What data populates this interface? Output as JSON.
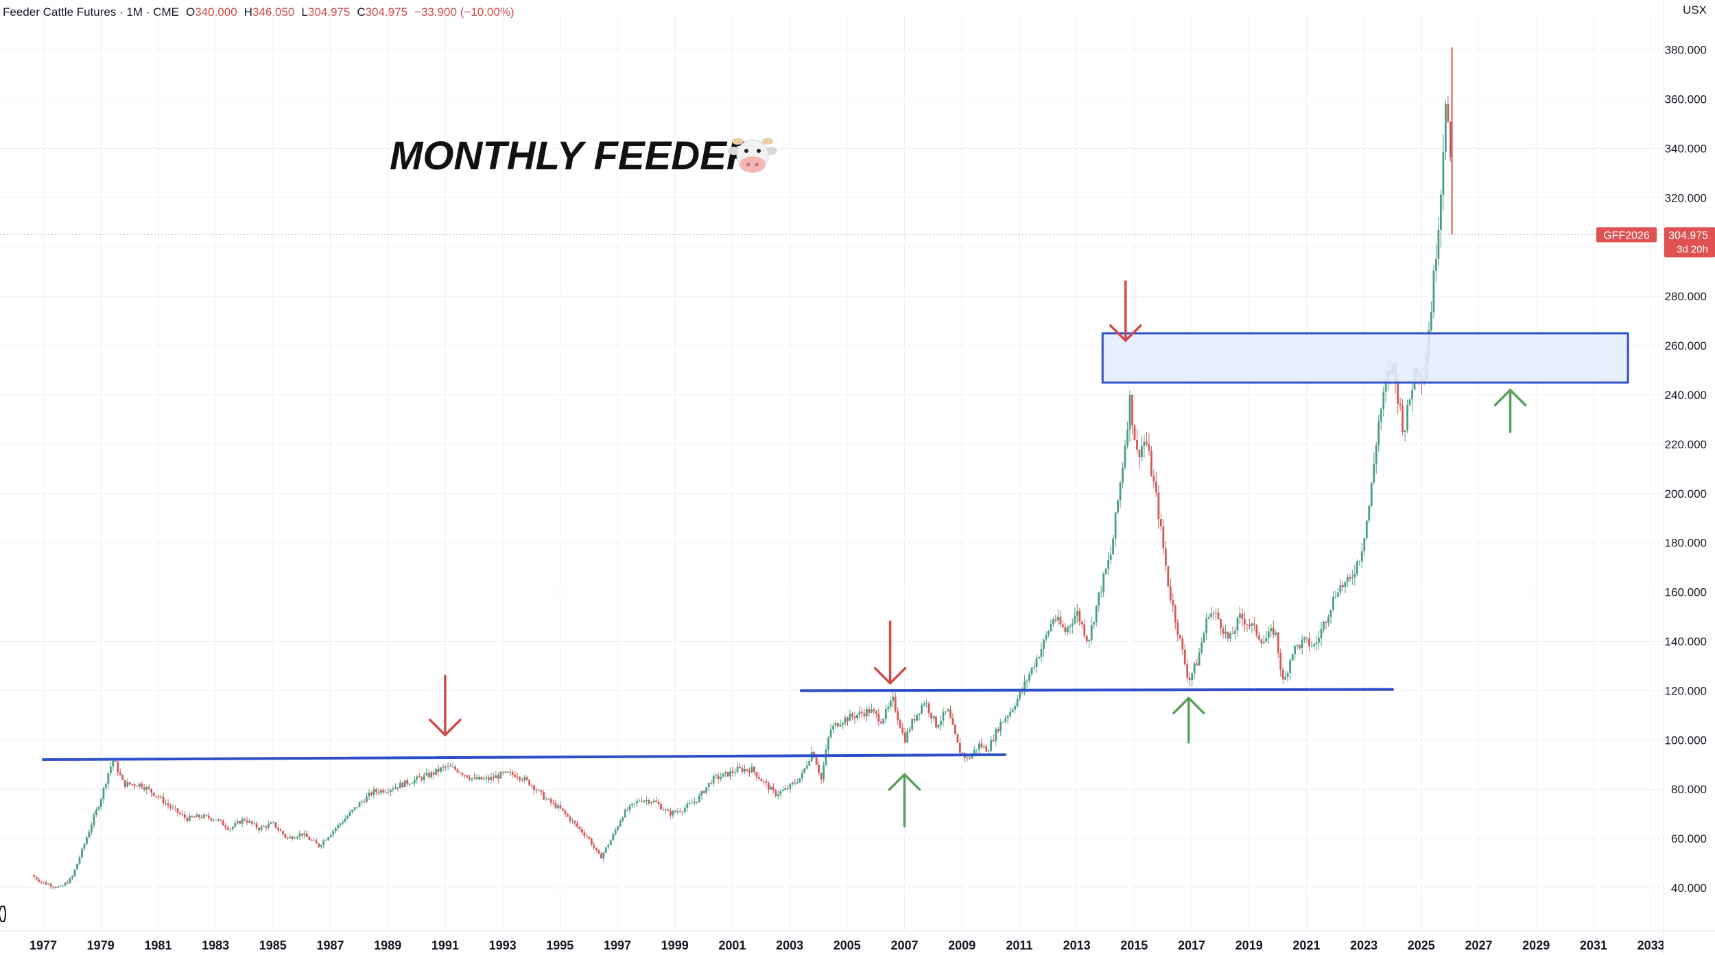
{
  "header": {
    "symbol": "Feeder Cattle Futures · 1M · CME",
    "o_label": "O",
    "o_value": "340.000",
    "h_label": "H",
    "h_value": "346.050",
    "l_label": "L",
    "l_value": "304.975",
    "c_label": "C",
    "c_value": "304.975",
    "change": "−33.900 (−10.00%)",
    "currency": "USX"
  },
  "annotation": {
    "text": "MONTHLY FEEDER",
    "emoji": "🐮"
  },
  "price_badge": {
    "ticker": "GFF2026",
    "price": "304.975",
    "countdown": "3d 20h",
    "value": 304.975
  },
  "colors": {
    "up": "#4a9e83",
    "down": "#d05a5a",
    "level_line": "#2f4fc9",
    "zone_fill": "#e3ecfb",
    "zone_border": "#2f4fc9",
    "arrow_red": "#d04a4a",
    "arrow_green": "#5a9e5a",
    "badge": "#e05252",
    "grid": "#eef0f3"
  },
  "chart_data": {
    "type": "candlestick",
    "interval": "monthly",
    "xlim": [
      1976.5,
      2033
    ],
    "ylim": [
      30,
      386
    ],
    "grid": true,
    "y_ticks": [
      "40.000",
      "60.000",
      "80.000",
      "100.000",
      "120.000",
      "140.000",
      "160.000",
      "180.000",
      "200.000",
      "220.000",
      "240.000",
      "260.000",
      "280.000",
      "300.000",
      "320.000",
      "340.000",
      "360.000",
      "380.000"
    ],
    "x_ticks": [
      "1977",
      "1979",
      "1981",
      "1983",
      "1985",
      "1987",
      "1989",
      "1991",
      "1993",
      "1995",
      "1997",
      "1999",
      "2001",
      "2003",
      "2005",
      "2007",
      "2009",
      "2011",
      "2013",
      "2015",
      "2017",
      "2019",
      "2021",
      "2023",
      "2025",
      "2027",
      "2029",
      "2031",
      "2033"
    ],
    "price_path": [
      [
        1976.6,
        45
      ],
      [
        1977.0,
        42
      ],
      [
        1977.6,
        40
      ],
      [
        1978.0,
        44
      ],
      [
        1978.5,
        60
      ],
      [
        1979.0,
        76
      ],
      [
        1979.3,
        88
      ],
      [
        1979.45,
        92
      ],
      [
        1979.8,
        82
      ],
      [
        1980.4,
        82
      ],
      [
        1981.0,
        77
      ],
      [
        1981.5,
        72
      ],
      [
        1982.0,
        68
      ],
      [
        1982.5,
        69
      ],
      [
        1983.0,
        68
      ],
      [
        1983.5,
        64
      ],
      [
        1984.0,
        68
      ],
      [
        1984.5,
        64
      ],
      [
        1985.0,
        66
      ],
      [
        1985.5,
        60
      ],
      [
        1986.0,
        62
      ],
      [
        1986.6,
        57
      ],
      [
        1987.0,
        62
      ],
      [
        1987.5,
        68
      ],
      [
        1988.0,
        74
      ],
      [
        1988.5,
        79
      ],
      [
        1989.0,
        80
      ],
      [
        1989.5,
        82
      ],
      [
        1990.0,
        84
      ],
      [
        1990.5,
        86
      ],
      [
        1991.0,
        89
      ],
      [
        1991.4,
        88
      ],
      [
        1992.0,
        84
      ],
      [
        1992.5,
        84
      ],
      [
        1993.0,
        86
      ],
      [
        1993.5,
        86
      ],
      [
        1994.0,
        82
      ],
      [
        1994.5,
        76
      ],
      [
        1995.0,
        72
      ],
      [
        1995.5,
        66
      ],
      [
        1996.0,
        60
      ],
      [
        1996.4,
        52
      ],
      [
        1996.8,
        60
      ],
      [
        1997.2,
        70
      ],
      [
        1997.8,
        76
      ],
      [
        1998.3,
        75
      ],
      [
        1998.8,
        70
      ],
      [
        1999.3,
        72
      ],
      [
        1999.8,
        76
      ],
      [
        2000.3,
        84
      ],
      [
        2000.8,
        86
      ],
      [
        2001.2,
        88
      ],
      [
        2001.7,
        88
      ],
      [
        2002.0,
        84
      ],
      [
        2002.5,
        78
      ],
      [
        2002.9,
        80
      ],
      [
        2003.4,
        85
      ],
      [
        2003.8,
        96
      ],
      [
        2004.1,
        84
      ],
      [
        2004.4,
        104
      ],
      [
        2004.8,
        108
      ],
      [
        2005.3,
        110
      ],
      [
        2005.8,
        112
      ],
      [
        2006.2,
        108
      ],
      [
        2006.6,
        116
      ],
      [
        2007.0,
        100
      ],
      [
        2007.3,
        108
      ],
      [
        2007.7,
        116
      ],
      [
        2008.1,
        106
      ],
      [
        2008.5,
        112
      ],
      [
        2008.9,
        96
      ],
      [
        2009.2,
        92
      ],
      [
        2009.6,
        98
      ],
      [
        2009.9,
        96
      ],
      [
        2010.3,
        106
      ],
      [
        2010.7,
        112
      ],
      [
        2011.0,
        118
      ],
      [
        2011.4,
        128
      ],
      [
        2011.8,
        138
      ],
      [
        2012.2,
        150
      ],
      [
        2012.6,
        144
      ],
      [
        2013.0,
        152
      ],
      [
        2013.4,
        140
      ],
      [
        2013.8,
        160
      ],
      [
        2014.2,
        176
      ],
      [
        2014.6,
        212
      ],
      [
        2014.85,
        238
      ],
      [
        2015.1,
        216
      ],
      [
        2015.4,
        222
      ],
      [
        2015.8,
        196
      ],
      [
        2016.2,
        162
      ],
      [
        2016.6,
        140
      ],
      [
        2016.9,
        124
      ],
      [
        2017.2,
        132
      ],
      [
        2017.6,
        152
      ],
      [
        2017.9,
        150
      ],
      [
        2018.3,
        140
      ],
      [
        2018.7,
        150
      ],
      [
        2019.1,
        146
      ],
      [
        2019.5,
        140
      ],
      [
        2019.9,
        145
      ],
      [
        2020.2,
        122
      ],
      [
        2020.5,
        136
      ],
      [
        2020.9,
        140
      ],
      [
        2021.3,
        138
      ],
      [
        2021.7,
        150
      ],
      [
        2022.1,
        162
      ],
      [
        2022.5,
        164
      ],
      [
        2022.9,
        176
      ],
      [
        2023.2,
        196
      ],
      [
        2023.5,
        228
      ],
      [
        2023.8,
        246
      ],
      [
        2024.0,
        252
      ],
      [
        2024.4,
        225
      ],
      [
        2024.8,
        252
      ],
      [
        2025.1,
        248
      ],
      [
        2025.4,
        282
      ],
      [
        2025.7,
        326
      ],
      [
        2025.85,
        362
      ],
      [
        2026.0,
        340
      ],
      [
        2026.07,
        304.975
      ]
    ],
    "horizontal_levels": [
      {
        "y1": 92,
        "y2": 94,
        "x1": 1977.0,
        "x2": 2010.5
      },
      {
        "y1": 120,
        "y2": 120.5,
        "x1": 2003.4,
        "x2": 2024.0
      }
    ],
    "zones": [
      {
        "x1": 2013.9,
        "x2": 2032.2,
        "y1": 245,
        "y2": 265
      }
    ],
    "arrows": [
      {
        "direction": "down",
        "color": "red",
        "x": 1991.0,
        "y_from": 126,
        "y_to": 102
      },
      {
        "direction": "down",
        "color": "red",
        "x": 2006.5,
        "y_from": 148,
        "y_to": 123
      },
      {
        "direction": "down",
        "color": "red",
        "x": 2014.7,
        "y_from": 286,
        "y_to": 262
      },
      {
        "direction": "up",
        "color": "green",
        "x": 2007.0,
        "y_from": 65,
        "y_to": 86
      },
      {
        "direction": "up",
        "color": "green",
        "x": 2016.9,
        "y_from": 99,
        "y_to": 117
      },
      {
        "direction": "up",
        "color": "green",
        "x": 2028.1,
        "y_from": 225,
        "y_to": 242
      }
    ]
  }
}
